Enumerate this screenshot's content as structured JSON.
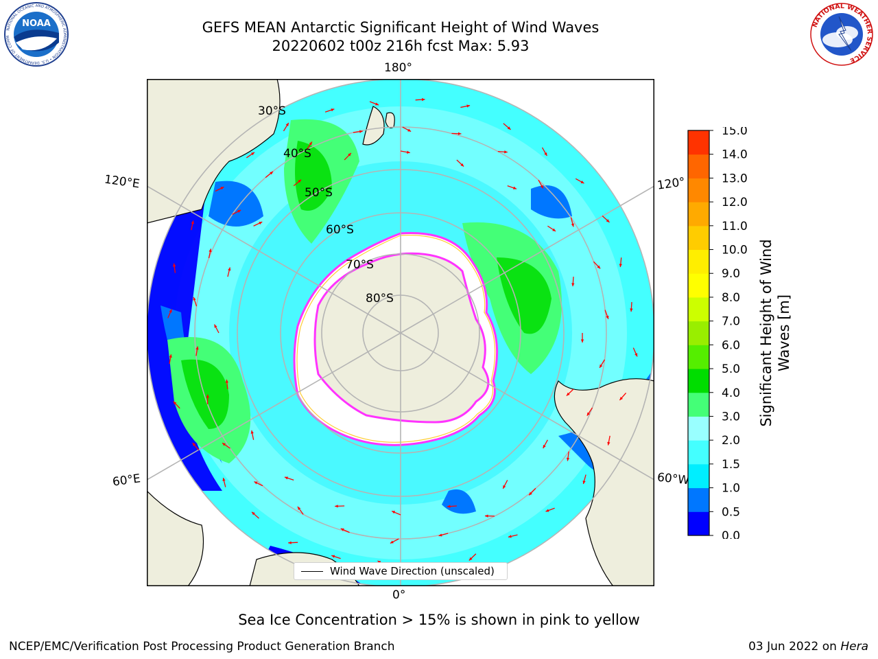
{
  "header": {
    "title_line1": "GEFS MEAN Antarctic Significant Height of Wind Waves",
    "title_line2": "20220602 t00z 216h fcst   Max: 5.93",
    "noaa_logo_text": "NOAA",
    "noaa_ring_text": "NATIONAL OCEANIC AND ATMOSPHERIC ADMINISTRATION • U.S. DEPARTMENT OF COMMERCE",
    "nws_ring_text": "NATIONAL WEATHER SERVICE"
  },
  "map": {
    "projection": "south-polar-stereographic",
    "longitude_labels": [
      "180°",
      "120°E",
      "120°",
      "60°E",
      "60°W",
      "0°"
    ],
    "latitude_labels": [
      "30°S",
      "40°S",
      "50°S",
      "60°S",
      "70°S",
      "80°S"
    ],
    "colors": {
      "land": "#eeeedd",
      "ice": "#ffffff",
      "ice_edge": [
        "#ff33ff",
        "#ffcc33"
      ],
      "arrow": "#ff0000",
      "grid": "#b4b4b4"
    },
    "legend_label": "Wind Wave Direction (unscaled)"
  },
  "colorbar": {
    "label": "Significant Height of Wind Waves [m]",
    "ticks": [
      "0.0",
      "0.5",
      "1.0",
      "1.5",
      "2.0",
      "3.0",
      "4.0",
      "5.0",
      "6.0",
      "7.0",
      "8.0",
      "9.0",
      "10.0",
      "11.0",
      "12.0",
      "13.0",
      "14.0",
      "15.0"
    ],
    "colors": [
      "#0000ff",
      "#0077ff",
      "#00eeff",
      "#44ffff",
      "#99ffff",
      "#44ff77",
      "#00dd00",
      "#55ee00",
      "#99ee00",
      "#ccff00",
      "#ffff00",
      "#ffee00",
      "#ffcc00",
      "#ffaa00",
      "#ff8800",
      "#ff6600",
      "#ff3300",
      "#ff0000"
    ]
  },
  "note": "Sea Ice Concentration > 15% is shown in pink to yellow",
  "footer": {
    "left": "NCEP/EMC/Verification Post Processing Product Generation Branch",
    "right_date": "03 Jun 2022 on",
    "right_machine": "Hera"
  }
}
